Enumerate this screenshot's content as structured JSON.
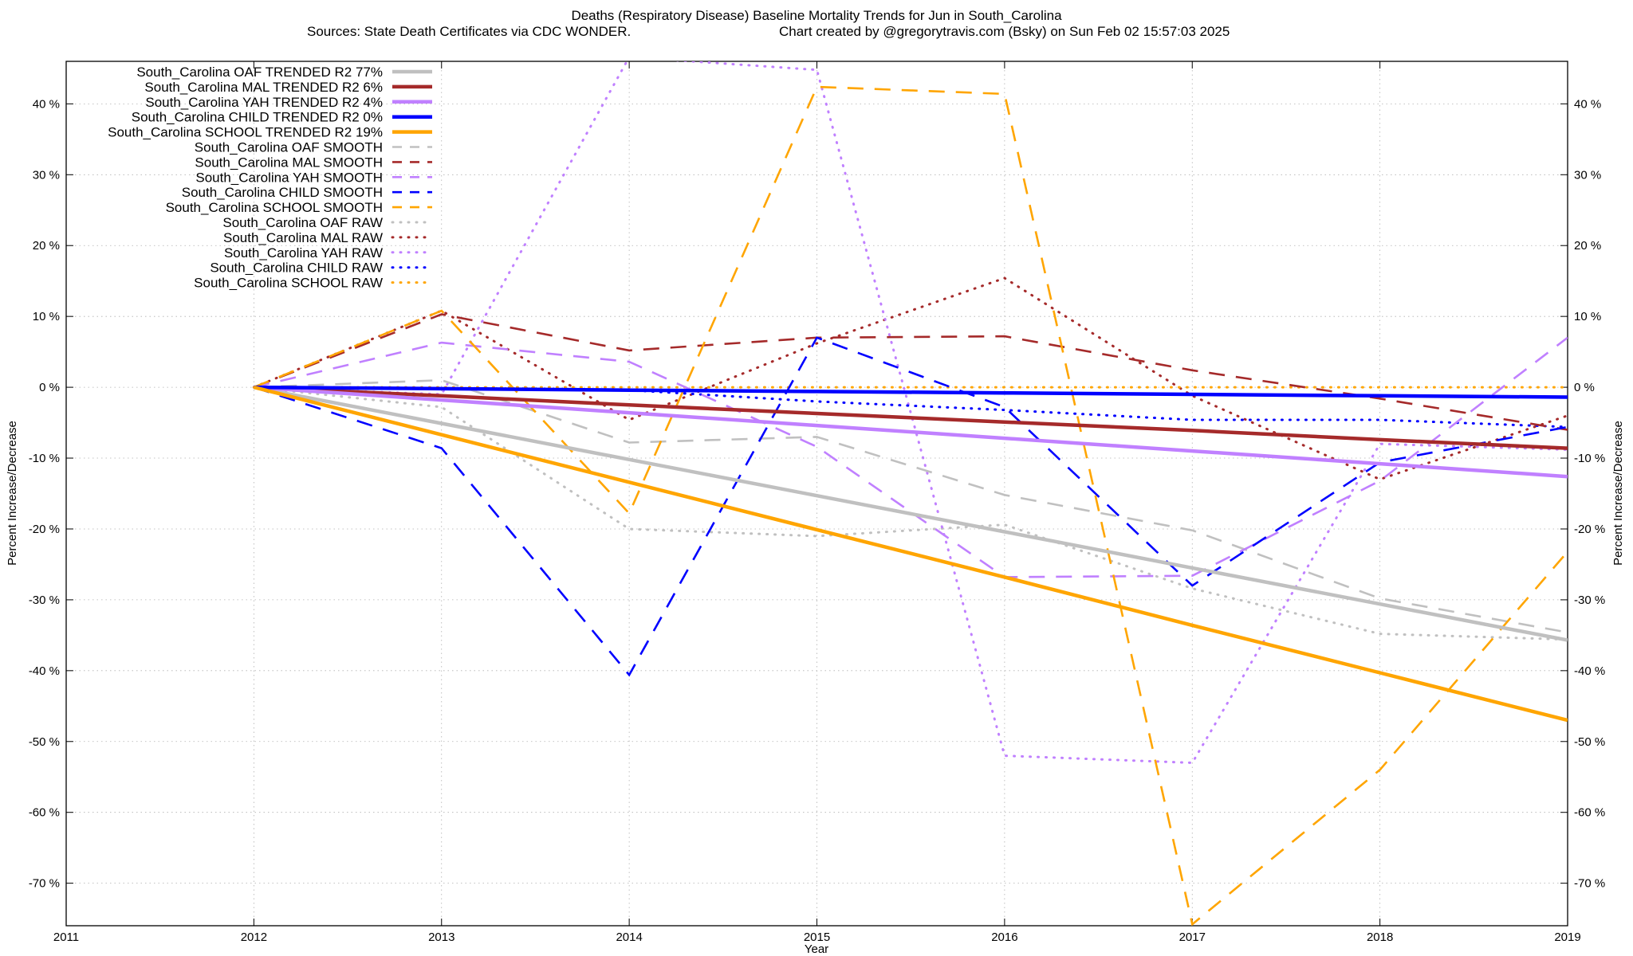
{
  "chart_data": {
    "type": "line",
    "title": "Deaths (Respiratory Disease)  Baseline Mortality Trends for Jun in South_Carolina",
    "subtitle_left": "Sources: State Death Certificates via CDC WONDER.",
    "subtitle_right": "Chart created by @gregorytravis.com (Bsky) on Sun Feb 02 15:57:03 2025",
    "xlabel": "Year",
    "ylabel": "Percent Increase/Decrease",
    "ylabel_right": "Percent Increase/Decrease",
    "xlim": [
      2011,
      2019
    ],
    "ylim": [
      -76,
      46
    ],
    "x_ticks": [
      2011,
      2012,
      2013,
      2014,
      2015,
      2016,
      2017,
      2018,
      2019
    ],
    "x_tick_labels": [
      "2011",
      "2012",
      "2013",
      "2014",
      "2015",
      "2016",
      "2017",
      "2018",
      "2019"
    ],
    "y_ticks": [
      40,
      30,
      20,
      10,
      0,
      -10,
      -20,
      -30,
      -40,
      -50,
      -60,
      -70
    ],
    "y_tick_labels": [
      "40 %",
      "30 %",
      "20 %",
      "10 %",
      "0 %",
      "-10 %",
      "-20 %",
      "-30 %",
      "-40 %",
      "-50 %",
      "-60 %",
      "-70 %"
    ],
    "grid": true,
    "legend_position": "top-left",
    "x": [
      2012,
      2013,
      2014,
      2015,
      2016,
      2017,
      2018,
      2019
    ],
    "series": [
      {
        "name": "South_Carolina OAF TRENDED R2  77%",
        "color": "#c0c0c0",
        "style": "solid",
        "values": [
          0,
          -5.1,
          -10.2,
          -15.3,
          -20.4,
          -25.5,
          -30.6,
          -35.7
        ]
      },
      {
        "name": "South_Carolina MAL TRENDED R2   6%",
        "color": "#a52a2a",
        "style": "solid",
        "values": [
          0,
          -1.2,
          -2.5,
          -3.7,
          -4.9,
          -6.1,
          -7.4,
          -8.6
        ]
      },
      {
        "name": "South_Carolina YAH TRENDED R2   4%",
        "color": "#c080ff",
        "style": "solid",
        "values": [
          0,
          -1.8,
          -3.6,
          -5.4,
          -7.2,
          -9.0,
          -10.8,
          -12.6
        ]
      },
      {
        "name": "South_Carolina CHILD TRENDED R2   0%",
        "color": "#0000ff",
        "style": "solid",
        "values": [
          0,
          -0.2,
          -0.4,
          -0.6,
          -0.8,
          -1.0,
          -1.2,
          -1.4
        ]
      },
      {
        "name": "South_Carolina SCHOOL TRENDED R2  19%",
        "color": "#ffa500",
        "style": "solid",
        "values": [
          0,
          -6.7,
          -13.4,
          -20.1,
          -26.8,
          -33.6,
          -40.3,
          -47.0
        ]
      },
      {
        "name": "South_Carolina OAF SMOOTH",
        "color": "#c0c0c0",
        "style": "dashed",
        "values": [
          0,
          1.0,
          -7.8,
          -7.0,
          -15.2,
          -20.2,
          -29.8,
          -34.6
        ]
      },
      {
        "name": "South_Carolina MAL SMOOTH",
        "color": "#a52a2a",
        "style": "dashed",
        "values": [
          0,
          10.3,
          5.2,
          7.0,
          7.2,
          2.4,
          -1.6,
          -6.0
        ]
      },
      {
        "name": "South_Carolina YAH SMOOTH",
        "color": "#c080ff",
        "style": "dashed",
        "values": [
          0,
          6.3,
          3.6,
          -8.4,
          -26.8,
          -26.6,
          -13.2,
          7.0
        ]
      },
      {
        "name": "South_Carolina CHILD SMOOTH",
        "color": "#0000ff",
        "style": "dashed",
        "values": [
          0,
          -8.6,
          -40.6,
          7.0,
          -2.8,
          -28.0,
          -10.6,
          -5.6
        ]
      },
      {
        "name": "South_Carolina SCHOOL SMOOTH",
        "color": "#ffa500",
        "style": "dashed",
        "values": [
          0,
          10.8,
          -17.8,
          42.4,
          41.4,
          -75.8,
          -54.0,
          -23.2
        ]
      },
      {
        "name": "South_Carolina OAF RAW",
        "color": "#c0c0c0",
        "style": "dotted",
        "values": [
          0,
          -2.8,
          -20.0,
          -21.0,
          -19.4,
          -28.4,
          -34.8,
          -35.6
        ]
      },
      {
        "name": "South_Carolina MAL RAW",
        "color": "#a52a2a",
        "style": "dotted",
        "values": [
          0,
          10.8,
          -4.6,
          6.2,
          15.4,
          -1.2,
          -13.0,
          -4.0
        ]
      },
      {
        "name": "South_Carolina YAH RAW",
        "color": "#c080ff",
        "style": "dotted",
        "values": [
          0,
          -1.0,
          46.6,
          44.8,
          -52.0,
          -53.0,
          -8.0,
          -8.8
        ]
      },
      {
        "name": "South_Carolina CHILD RAW",
        "color": "#0000ff",
        "style": "dotted",
        "values": [
          0,
          -0.2,
          -0.4,
          -2.0,
          -3.2,
          -4.6,
          -4.6,
          -5.6
        ]
      },
      {
        "name": "South_Carolina SCHOOL RAW",
        "color": "#ffa500",
        "style": "dotted",
        "values": [
          0,
          0,
          0,
          0,
          0,
          0,
          0,
          0
        ]
      }
    ]
  }
}
